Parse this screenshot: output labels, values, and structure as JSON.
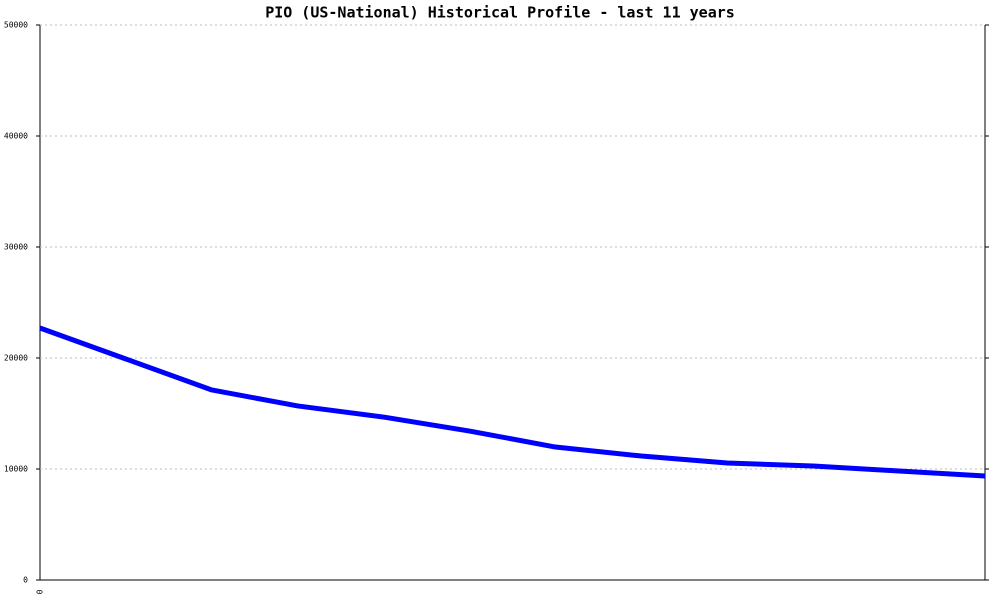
{
  "chart_data": {
    "type": "line",
    "title": "PIO (US-National) Historical Profile - last 11 years",
    "categories": [
      "0",
      null,
      null,
      null,
      null,
      null,
      null,
      null,
      null,
      null,
      null,
      null
    ],
    "values": [
      22700,
      19910,
      17120,
      15680,
      14680,
      13420,
      11980,
      11170,
      10540,
      10270,
      9820,
      9370
    ],
    "color": "#0000ff",
    "ylim": [
      0,
      50000
    ],
    "yticks": [
      0,
      10000,
      20000,
      30000,
      40000,
      50000
    ],
    "grid": true
  }
}
